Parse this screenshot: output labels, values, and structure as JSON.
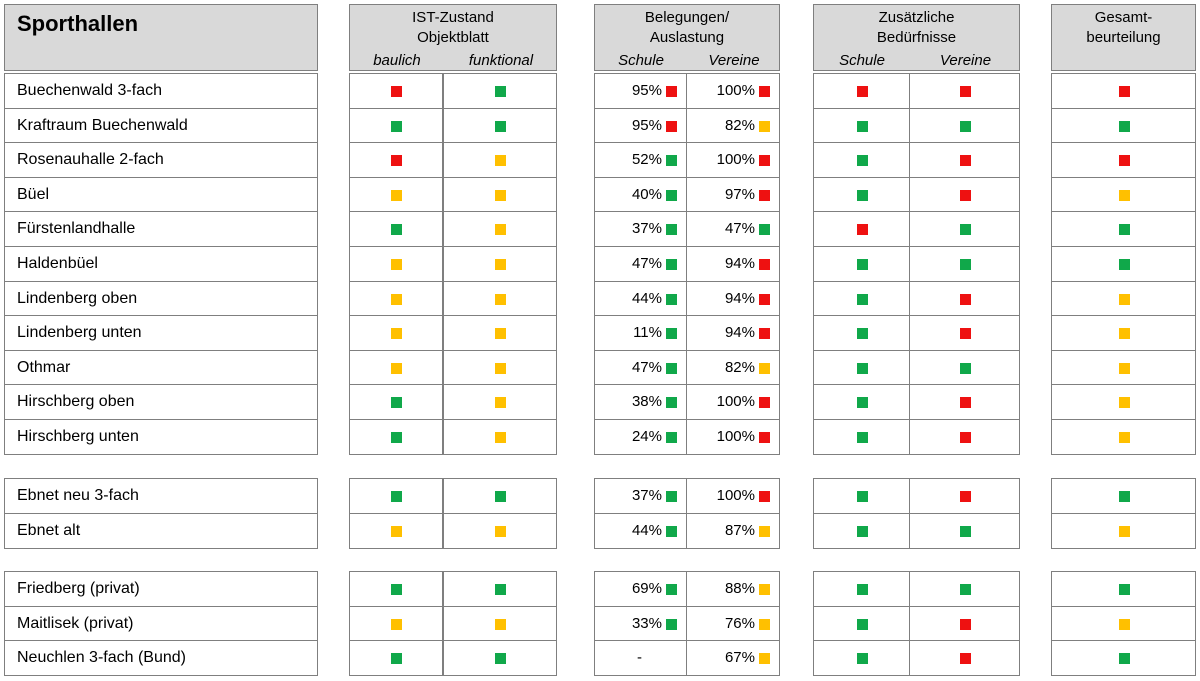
{
  "section_title": "Sporthallen",
  "headers": {
    "ist": {
      "line1": "IST-Zustand",
      "line2": "Objektblatt",
      "sub1": "baulich",
      "sub2": "funktional"
    },
    "belegungen": {
      "line1": "Belegungen/",
      "line2": "Auslastung",
      "sub1": "Schule",
      "sub2": "Vereine"
    },
    "beduerfnisse": {
      "line1": "Zusätzliche",
      "line2": "Bedürfnisse",
      "sub1": "Schule",
      "sub2": "Vereine"
    },
    "gesamt": {
      "line1": "Gesamt-",
      "line2": "beurteilung"
    }
  },
  "colors": {
    "red": "#ee1111",
    "green": "#10a84a",
    "yellow": "#ffc000"
  },
  "groups": [
    {
      "rows": [
        {
          "name": "Buechenwald 3-fach",
          "baulich": "red",
          "funktional": "green",
          "schule_pct": "95%",
          "schule_status": "red",
          "vereine_pct": "100%",
          "vereine_status": "red",
          "bed_schule": "red",
          "bed_vereine": "red",
          "gesamt": "red"
        },
        {
          "name": "Kraftraum Buechenwald",
          "baulich": "green",
          "funktional": "green",
          "schule_pct": "95%",
          "schule_status": "red",
          "vereine_pct": "82%",
          "vereine_status": "yellow",
          "bed_schule": "green",
          "bed_vereine": "green",
          "gesamt": "green"
        },
        {
          "name": "Rosenauhalle 2-fach",
          "baulich": "red",
          "funktional": "yellow",
          "schule_pct": "52%",
          "schule_status": "green",
          "vereine_pct": "100%",
          "vereine_status": "red",
          "bed_schule": "green",
          "bed_vereine": "red",
          "gesamt": "red"
        },
        {
          "name": "Büel",
          "baulich": "yellow",
          "funktional": "yellow",
          "schule_pct": "40%",
          "schule_status": "green",
          "vereine_pct": "97%",
          "vereine_status": "red",
          "bed_schule": "green",
          "bed_vereine": "red",
          "gesamt": "yellow"
        },
        {
          "name": "Fürstenlandhalle",
          "baulich": "green",
          "funktional": "yellow",
          "schule_pct": "37%",
          "schule_status": "green",
          "vereine_pct": "47%",
          "vereine_status": "green",
          "bed_schule": "red",
          "bed_vereine": "green",
          "gesamt": "green"
        },
        {
          "name": "Haldenbüel",
          "baulich": "yellow",
          "funktional": "yellow",
          "schule_pct": "47%",
          "schule_status": "green",
          "vereine_pct": "94%",
          "vereine_status": "red",
          "bed_schule": "green",
          "bed_vereine": "green",
          "gesamt": "green"
        },
        {
          "name": "Lindenberg oben",
          "baulich": "yellow",
          "funktional": "yellow",
          "schule_pct": "44%",
          "schule_status": "green",
          "vereine_pct": "94%",
          "vereine_status": "red",
          "bed_schule": "green",
          "bed_vereine": "red",
          "gesamt": "yellow"
        },
        {
          "name": "Lindenberg unten",
          "baulich": "yellow",
          "funktional": "yellow",
          "schule_pct": "11%",
          "schule_status": "green",
          "vereine_pct": "94%",
          "vereine_status": "red",
          "bed_schule": "green",
          "bed_vereine": "red",
          "gesamt": "yellow"
        },
        {
          "name": "Othmar",
          "baulich": "yellow",
          "funktional": "yellow",
          "schule_pct": "47%",
          "schule_status": "green",
          "vereine_pct": "82%",
          "vereine_status": "yellow",
          "bed_schule": "green",
          "bed_vereine": "green",
          "gesamt": "yellow"
        },
        {
          "name": "Hirschberg oben",
          "baulich": "green",
          "funktional": "yellow",
          "schule_pct": "38%",
          "schule_status": "green",
          "vereine_pct": "100%",
          "vereine_status": "red",
          "bed_schule": "green",
          "bed_vereine": "red",
          "gesamt": "yellow"
        },
        {
          "name": "Hirschberg unten",
          "baulich": "green",
          "funktional": "yellow",
          "schule_pct": "24%",
          "schule_status": "green",
          "vereine_pct": "100%",
          "vereine_status": "red",
          "bed_schule": "green",
          "bed_vereine": "red",
          "gesamt": "yellow"
        }
      ]
    },
    {
      "rows": [
        {
          "name": "Ebnet neu 3-fach",
          "baulich": "green",
          "funktional": "green",
          "schule_pct": "37%",
          "schule_status": "green",
          "vereine_pct": "100%",
          "vereine_status": "red",
          "bed_schule": "green",
          "bed_vereine": "red",
          "gesamt": "green"
        },
        {
          "name": "Ebnet alt",
          "baulich": "yellow",
          "funktional": "yellow",
          "schule_pct": "44%",
          "schule_status": "green",
          "vereine_pct": "87%",
          "vereine_status": "yellow",
          "bed_schule": "green",
          "bed_vereine": "green",
          "gesamt": "yellow"
        }
      ]
    },
    {
      "rows": [
        {
          "name": "Friedberg (privat)",
          "baulich": "green",
          "funktional": "green",
          "schule_pct": "69%",
          "schule_status": "green",
          "vereine_pct": "88%",
          "vereine_status": "yellow",
          "bed_schule": "green",
          "bed_vereine": "green",
          "gesamt": "green"
        },
        {
          "name": "Maitlisek (privat)",
          "baulich": "yellow",
          "funktional": "yellow",
          "schule_pct": "33%",
          "schule_status": "green",
          "vereine_pct": "76%",
          "vereine_status": "yellow",
          "bed_schule": "green",
          "bed_vereine": "red",
          "gesamt": "yellow"
        },
        {
          "name": "Neuchlen 3-fach (Bund)",
          "baulich": "green",
          "funktional": "green",
          "schule_pct": "-",
          "schule_status": null,
          "vereine_pct": "67%",
          "vereine_status": "yellow",
          "bed_schule": "green",
          "bed_vereine": "red",
          "gesamt": "green"
        }
      ]
    }
  ]
}
